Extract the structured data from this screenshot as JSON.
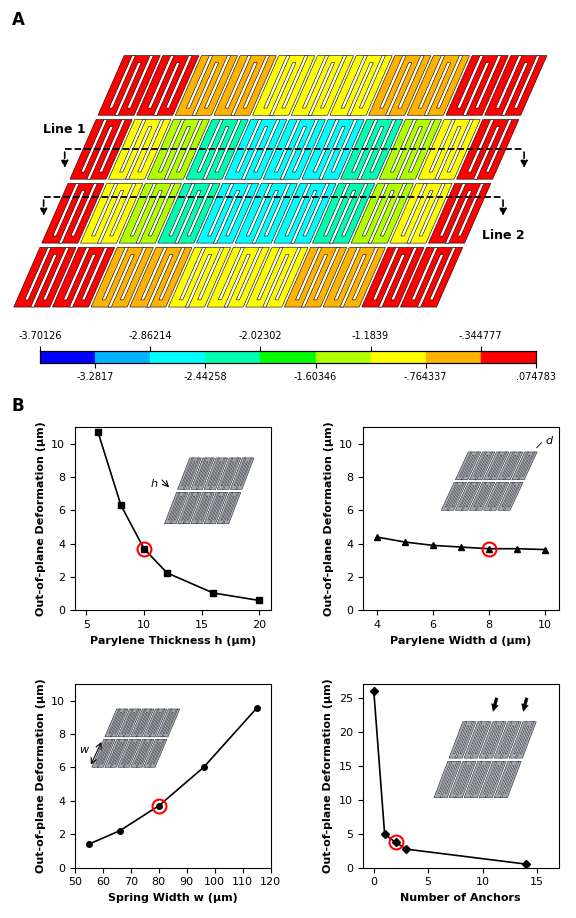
{
  "panel_labels": [
    "A",
    "B"
  ],
  "contour": {
    "lines": [
      "Line 1",
      "Line 2"
    ],
    "colorbar_range": [
      -3.70126,
      0.074783
    ],
    "colorbar_ticks": [
      -3.70126,
      -3.2817,
      -2.86214,
      -2.44258,
      -2.02302,
      -1.60346,
      -1.1839,
      {
        "value": -0.764337,
        "label": "-.764337"
      },
      {
        "value": -0.344777,
        "label": "-.344777"
      },
      {
        "value": 0.074783,
        "label": ".074783"
      }
    ],
    "colors": [
      "#0000ff",
      "#00b2ff",
      "#00ffff",
      "#00ffb2",
      "#00ff00",
      "#b2ff00",
      "#ffff00",
      "#ffb200",
      "#ff0000"
    ]
  },
  "chart_data": [
    {
      "type": "line",
      "x_label": "Parylene Thickness h (µm)",
      "y_label": "Out-of-plane Deformation (µm)",
      "annotations": [
        "h"
      ],
      "xlim": [
        4,
        21
      ],
      "xticks": [
        5,
        10,
        15,
        20
      ],
      "ylim": [
        0,
        11
      ],
      "yticks": [
        0,
        2,
        4,
        6,
        8,
        10
      ],
      "series": [
        {
          "color": "#000000",
          "marker": "square",
          "line_style": "solid",
          "x": [
            6,
            8,
            10,
            12,
            16,
            20
          ],
          "values": [
            10.7,
            6.3,
            3.7,
            2.25,
            1.05,
            0.6
          ]
        },
        {
          "color": "#ff0000",
          "marker": "circle",
          "line_style": "none",
          "x": [
            10
          ],
          "values": [
            3.7
          ]
        }
      ]
    },
    {
      "type": "line",
      "x_label": "Parylene Width d (µm)",
      "y_label": "Out-of-plane Deformation (µm)",
      "annotations": [
        "d"
      ],
      "xlim": [
        3.5,
        10.5
      ],
      "xticks": [
        4,
        6,
        8,
        10
      ],
      "ylim": [
        0,
        11
      ],
      "yticks": [
        0,
        2,
        4,
        6,
        8,
        10
      ],
      "series": [
        {
          "color": "#000000",
          "marker": "triangle",
          "line_style": "solid",
          "x": [
            4,
            5,
            6,
            7,
            8,
            9,
            10
          ],
          "values": [
            4.4,
            4.1,
            3.9,
            3.8,
            3.7,
            3.7,
            3.65
          ]
        },
        {
          "color": "#ff0000",
          "marker": "circle",
          "line_style": "none",
          "x": [
            8
          ],
          "values": [
            3.7
          ]
        }
      ]
    },
    {
      "type": "line",
      "x_label": "Spring Width w (µm)",
      "y_label": "Out-of-plane Deformation (µm)",
      "annotations": [
        "w"
      ],
      "xlim": [
        50,
        120
      ],
      "xticks": [
        50,
        60,
        70,
        80,
        90,
        100,
        110,
        120
      ],
      "ylim": [
        0,
        11
      ],
      "yticks": [
        0,
        2,
        4,
        6,
        8,
        10
      ],
      "series": [
        {
          "color": "#000000",
          "marker": "circle",
          "line_style": "solid",
          "x": [
            55,
            66,
            80,
            96,
            115
          ],
          "values": [
            1.4,
            2.2,
            3.7,
            6.0,
            9.55
          ]
        },
        {
          "color": "#ff0000",
          "marker": "circle",
          "line_style": "none",
          "x": [
            80
          ],
          "values": [
            3.7
          ]
        }
      ]
    },
    {
      "type": "line",
      "x_label": "Number of Anchors",
      "y_label": "Out-of-plane Deformation (µm)",
      "xlim": [
        -1,
        17
      ],
      "xticks": [
        0,
        5,
        10,
        15
      ],
      "ylim": [
        0,
        27
      ],
      "yticks": [
        0,
        5,
        10,
        15,
        20,
        25
      ],
      "series": [
        {
          "color": "#000000",
          "marker": "diamond",
          "line_style": "solid",
          "x": [
            0,
            1,
            2,
            3,
            14
          ],
          "values": [
            26,
            4.9,
            3.7,
            2.7,
            0.5
          ]
        },
        {
          "color": "#ff0000",
          "marker": "circle",
          "line_style": "none",
          "x": [
            2
          ],
          "values": [
            3.7
          ]
        }
      ]
    }
  ]
}
